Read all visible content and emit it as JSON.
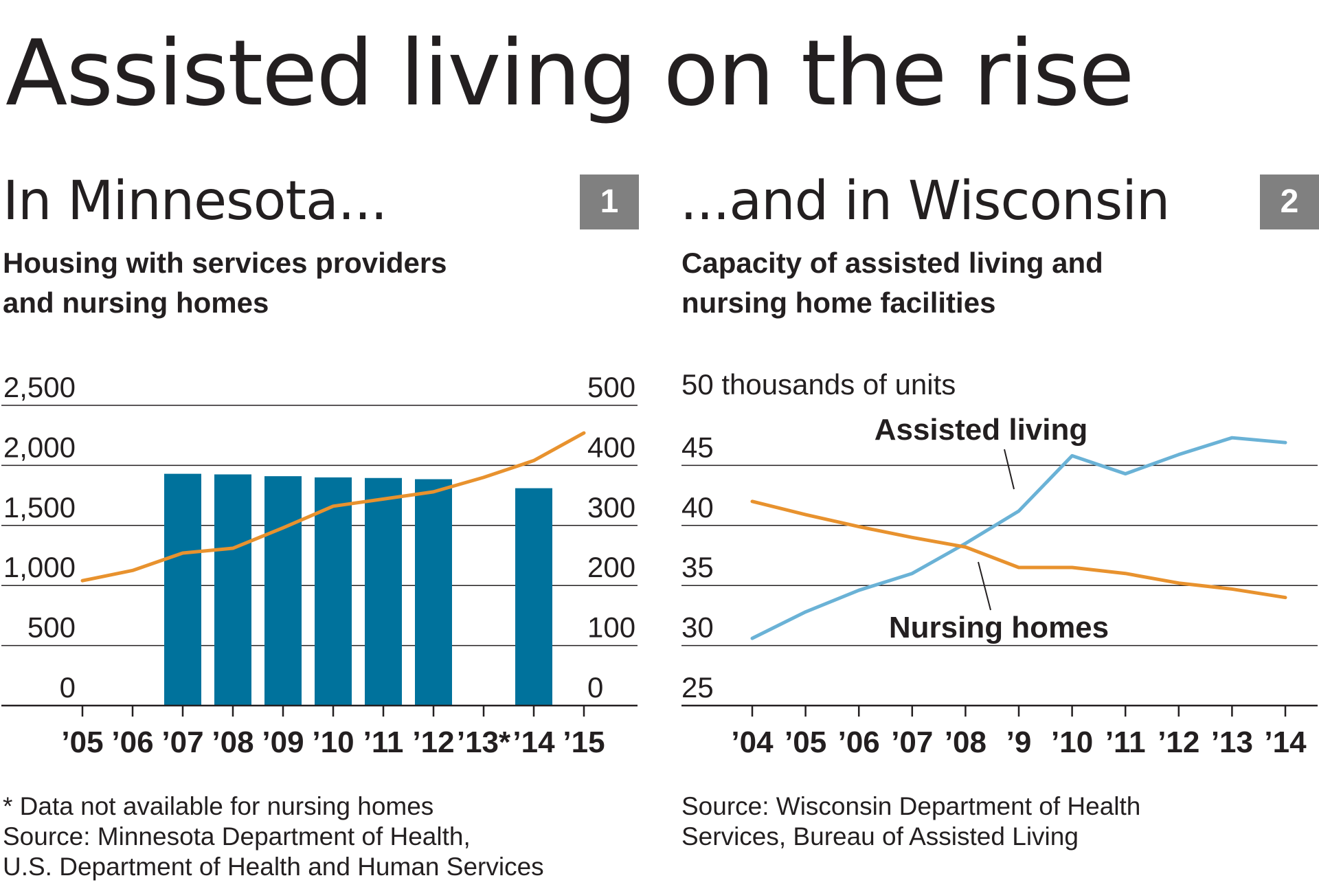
{
  "title": "Assisted living on the rise",
  "colors": {
    "bar": "#00729c",
    "orange": "#e8922e",
    "blue": "#6ab2d6",
    "grid": "#231f20",
    "badge": "#808080"
  },
  "panels": [
    {
      "heading": "In Minnesota...",
      "badge": "1",
      "subtitle_lines": [
        "Housing with services providers",
        "and nursing homes"
      ],
      "notes": [
        "* Data not available for nursing homes",
        "Source: Minnesota Department of Health,",
        "U.S. Department of Health and Human Services"
      ]
    },
    {
      "heading": "...and in Wisconsin",
      "badge": "2",
      "subtitle_lines": [
        "Capacity of assisted living and",
        "nursing home facilities"
      ],
      "notes": [
        "Source: Wisconsin Department of Health",
        "Services, Bureau of Assisted Living"
      ]
    }
  ],
  "chart_data": [
    {
      "type": "bar+line",
      "title": "Housing with services providers and nursing homes",
      "categories": [
        "’05",
        "’06",
        "’07",
        "’08",
        "’09",
        "’10",
        "’11",
        "’12",
        "’13*",
        "’14",
        "’15"
      ],
      "left_axis": {
        "ticks": [
          "2,500",
          "2,000",
          "1,500",
          "1,000",
          "500",
          "0"
        ],
        "ylim": [
          0,
          2500
        ]
      },
      "right_axis": {
        "ticks": [
          "500",
          "400",
          "300",
          "200",
          "100",
          "0"
        ],
        "ylim": [
          0,
          500
        ]
      },
      "series": [
        {
          "name": "Housing with services providers",
          "kind": "line",
          "axis": "left",
          "values": [
            1040,
            1125,
            1270,
            1310,
            1480,
            1660,
            1720,
            1780,
            1900,
            2040,
            2270
          ]
        },
        {
          "name": "Nursing homes",
          "kind": "bar",
          "axis": "right",
          "values": [
            null,
            null,
            386,
            385,
            382,
            380,
            379,
            377,
            null,
            362,
            null
          ]
        }
      ],
      "footnote": "* Data not available for nursing homes"
    },
    {
      "type": "line",
      "title": "Capacity of assisted living and nursing home facilities",
      "ylabel": "thousands of units",
      "top_tick_label": "50 thousands of units",
      "categories": [
        "’04",
        "’05",
        "’06",
        "’07",
        "’08",
        "’9",
        "’10",
        "’11",
        "’12",
        "’13",
        "’14"
      ],
      "y_ticks": [
        "45",
        "40",
        "35",
        "30",
        "25"
      ],
      "ylim": [
        25,
        50
      ],
      "series": [
        {
          "name": "Assisted living",
          "values": [
            30.6,
            32.8,
            34.6,
            36.0,
            38.5,
            41.2,
            45.8,
            44.3,
            45.9,
            47.3,
            46.9
          ]
        },
        {
          "name": "Nursing homes",
          "values": [
            42.0,
            40.9,
            39.9,
            39.0,
            38.2,
            36.5,
            36.5,
            36.0,
            35.2,
            34.7,
            34.0
          ]
        }
      ],
      "annotations": [
        "Assisted living",
        "Nursing homes"
      ]
    }
  ]
}
